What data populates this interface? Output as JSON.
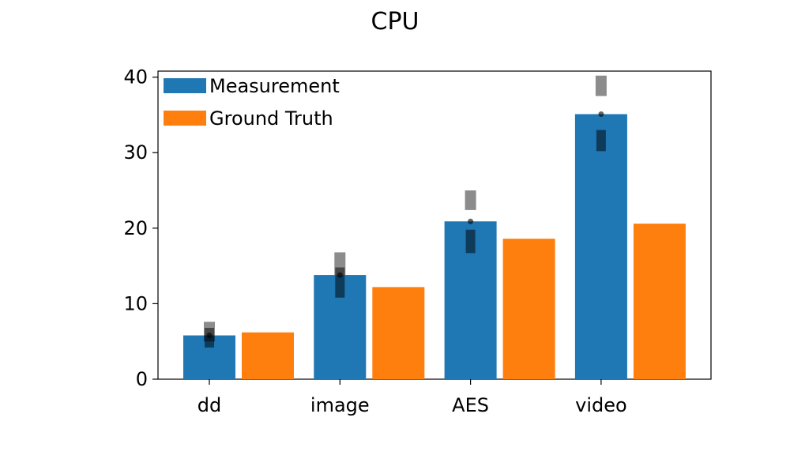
{
  "chart_data": {
    "type": "bar",
    "title": "CPU",
    "xlabel": "",
    "ylabel": "",
    "categories": [
      "dd",
      "image",
      "AES",
      "video"
    ],
    "ylim": [
      0,
      40.8
    ],
    "yticks": [
      0,
      10,
      20,
      30,
      40
    ],
    "series": [
      {
        "name": "Measurement",
        "color": "#1f77b4",
        "values": [
          5.8,
          13.8,
          20.9,
          35.1
        ],
        "error_inner": [
          [
            4.2,
            6.8
          ],
          [
            10.8,
            14.8
          ],
          [
            16.7,
            19.8
          ],
          [
            30.2,
            33.0
          ]
        ],
        "error_outer": [
          [
            5.0,
            7.6
          ],
          [
            13.8,
            16.8
          ],
          [
            22.4,
            25.0
          ],
          [
            37.5,
            40.2
          ]
        ]
      },
      {
        "name": "Ground Truth",
        "color": "#ff7f0e",
        "values": [
          6.2,
          12.2,
          18.6,
          20.6
        ]
      }
    ],
    "grid": false,
    "legend_position": "upper-left"
  }
}
